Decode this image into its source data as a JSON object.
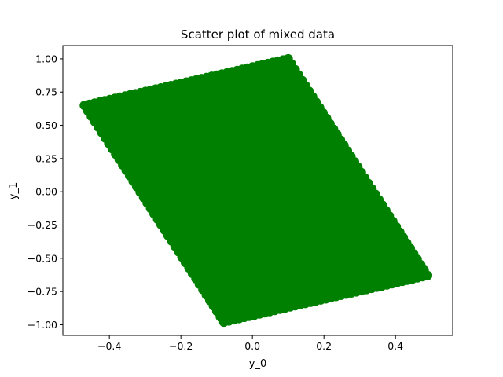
{
  "chart_data": {
    "type": "scatter",
    "title": "Scatter plot of mixed data",
    "xlabel": "y_0",
    "ylabel": "y_1",
    "xlim": [
      -0.53,
      0.56
    ],
    "ylim": [
      -1.08,
      1.1
    ],
    "xticks": [
      -0.4,
      -0.2,
      0.0,
      0.2,
      0.4
    ],
    "xtick_labels": [
      "−0.4",
      "−0.2",
      "0.0",
      "0.2",
      "0.4"
    ],
    "yticks": [
      -1.0,
      -0.75,
      -0.5,
      -0.25,
      0.0,
      0.25,
      0.5,
      0.75,
      1.0
    ],
    "ytick_labels": [
      "−1.00",
      "−0.75",
      "−0.50",
      "−0.25",
      "0.00",
      "0.25",
      "0.50",
      "0.75",
      "1.00"
    ],
    "grid": false,
    "series": [
      {
        "color": "#008000",
        "region_vertices": [
          [
            -0.47,
            0.65
          ],
          [
            0.1,
            1.0
          ],
          [
            0.5,
            -0.64
          ],
          [
            -0.08,
            -0.98
          ]
        ]
      }
    ]
  }
}
